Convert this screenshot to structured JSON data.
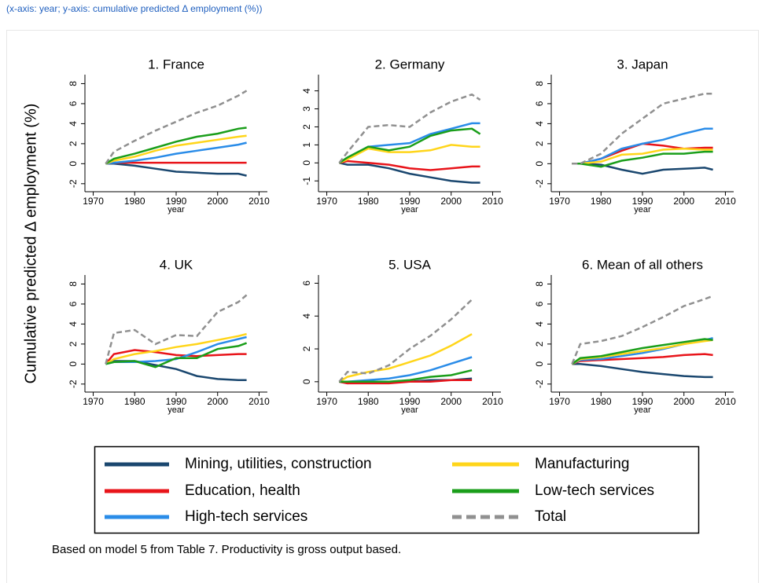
{
  "caption": "(x-axis: year; y-axis: cumulative predicted Δ employment (%))",
  "ylabel": "Cumulative predicted Δ employment (%)",
  "note": "Based on model 5 from Table 7. Productivity is gross output based.",
  "chart_data": [
    {
      "type": "line",
      "title": "1. France",
      "xlabel": "year",
      "x": [
        1973,
        1975,
        1980,
        1985,
        1990,
        1995,
        2000,
        2005,
        2007
      ],
      "xlim": [
        1968,
        2012
      ],
      "xticks": [
        1970,
        1980,
        1990,
        2000,
        2010
      ],
      "ylim": [
        -2.8,
        8.9
      ],
      "yticks": [
        -2,
        0,
        2,
        4,
        6,
        8
      ],
      "series": [
        {
          "name": "Mining, utilities, construction",
          "color": "#1a476f",
          "line_style": "solid",
          "values": [
            0,
            0,
            -0.2,
            -0.5,
            -0.8,
            -0.9,
            -1.0,
            -1.0,
            -1.2
          ]
        },
        {
          "name": "Education, health",
          "color": "#e8141a",
          "line_style": "solid",
          "values": [
            0,
            0.1,
            0.1,
            0.1,
            0.1,
            0.1,
            0.1,
            0.1,
            0.1
          ]
        },
        {
          "name": "High-tech services",
          "color": "#2a8ce8",
          "line_style": "solid",
          "values": [
            0,
            0.1,
            0.3,
            0.6,
            1.0,
            1.3,
            1.6,
            1.9,
            2.1
          ]
        },
        {
          "name": "Manufacturing",
          "color": "#ffd51a",
          "line_style": "solid",
          "values": [
            0,
            0.3,
            0.7,
            1.3,
            1.8,
            2.1,
            2.4,
            2.7,
            2.8
          ]
        },
        {
          "name": "Low-tech services",
          "color": "#1a9e1a",
          "line_style": "solid",
          "values": [
            0,
            0.5,
            1.0,
            1.6,
            2.2,
            2.7,
            3.0,
            3.5,
            3.6
          ]
        },
        {
          "name": "Total",
          "color": "#909090",
          "line_style": "dashed",
          "values": [
            0,
            1.2,
            2.3,
            3.3,
            4.2,
            5.1,
            5.8,
            6.8,
            7.3
          ]
        }
      ]
    },
    {
      "type": "line",
      "title": "2. Germany",
      "xlabel": "year",
      "x": [
        1973,
        1975,
        1980,
        1985,
        1990,
        1995,
        2000,
        2005,
        2007
      ],
      "xlim": [
        1968,
        2012
      ],
      "xticks": [
        1970,
        1980,
        1990,
        2000,
        2010
      ],
      "ylim": [
        -1.6,
        4.9
      ],
      "yticks": [
        -1,
        0,
        1,
        2,
        3,
        4
      ],
      "series": [
        {
          "name": "Mining, utilities, construction",
          "color": "#1a476f",
          "line_style": "solid",
          "values": [
            0,
            -0.1,
            -0.1,
            -0.3,
            -0.6,
            -0.8,
            -1.0,
            -1.1,
            -1.1
          ]
        },
        {
          "name": "Education, health",
          "color": "#e8141a",
          "line_style": "solid",
          "values": [
            0,
            0.1,
            0,
            -0.1,
            -0.3,
            -0.4,
            -0.3,
            -0.2,
            -0.2
          ]
        },
        {
          "name": "High-tech services",
          "color": "#2a8ce8",
          "line_style": "solid",
          "values": [
            0,
            0.3,
            0.9,
            1.0,
            1.1,
            1.6,
            1.9,
            2.2,
            2.2
          ]
        },
        {
          "name": "Manufacturing",
          "color": "#ffd51a",
          "line_style": "solid",
          "values": [
            0,
            0.2,
            0.8,
            0.6,
            0.6,
            0.7,
            1.0,
            0.9,
            0.9
          ]
        },
        {
          "name": "Low-tech services",
          "color": "#1a9e1a",
          "line_style": "solid",
          "values": [
            0,
            0.3,
            0.9,
            0.7,
            0.9,
            1.5,
            1.8,
            1.9,
            1.6
          ]
        },
        {
          "name": "Total",
          "color": "#909090",
          "line_style": "dashed",
          "values": [
            0,
            0.6,
            2.0,
            2.1,
            2.0,
            2.8,
            3.4,
            3.8,
            3.5
          ]
        }
      ]
    },
    {
      "type": "line",
      "title": "3. Japan",
      "xlabel": "year",
      "x": [
        1973,
        1975,
        1980,
        1985,
        1990,
        1995,
        2000,
        2005,
        2007
      ],
      "xlim": [
        1968,
        2012
      ],
      "xticks": [
        1970,
        1980,
        1990,
        2000,
        2010
      ],
      "ylim": [
        -2.8,
        8.9
      ],
      "yticks": [
        -2,
        0,
        2,
        4,
        6,
        8
      ],
      "series": [
        {
          "name": "Mining, utilities, construction",
          "color": "#1a476f",
          "line_style": "solid",
          "values": [
            0,
            0,
            -0.1,
            -0.6,
            -1.0,
            -0.6,
            -0.5,
            -0.4,
            -0.6
          ]
        },
        {
          "name": "Education, health",
          "color": "#e8141a",
          "line_style": "solid",
          "values": [
            0,
            0,
            0.5,
            1.3,
            2.0,
            1.8,
            1.5,
            1.6,
            1.6
          ]
        },
        {
          "name": "High-tech services",
          "color": "#2a8ce8",
          "line_style": "solid",
          "values": [
            0,
            0,
            0.5,
            1.5,
            2.0,
            2.4,
            3.0,
            3.5,
            3.5
          ]
        },
        {
          "name": "Manufacturing",
          "color": "#ffd51a",
          "line_style": "solid",
          "values": [
            0,
            0,
            0.2,
            0.9,
            1.0,
            1.4,
            1.5,
            1.4,
            1.4
          ]
        },
        {
          "name": "Low-tech services",
          "color": "#1a9e1a",
          "line_style": "solid",
          "values": [
            0,
            0,
            -0.3,
            0.3,
            0.6,
            1.0,
            1.0,
            1.2,
            1.2
          ]
        },
        {
          "name": "Total",
          "color": "#909090",
          "line_style": "dashed",
          "values": [
            0,
            0,
            1.0,
            3.0,
            4.5,
            6.0,
            6.5,
            7.0,
            7.0
          ]
        }
      ]
    },
    {
      "type": "line",
      "title": "4. UK",
      "xlabel": "year",
      "x": [
        1973,
        1975,
        1980,
        1985,
        1990,
        1995,
        2000,
        2005,
        2007
      ],
      "xlim": [
        1968,
        2012
      ],
      "xticks": [
        1970,
        1980,
        1990,
        2000,
        2010
      ],
      "ylim": [
        -2.8,
        8.9
      ],
      "yticks": [
        -2,
        0,
        2,
        4,
        6,
        8
      ],
      "series": [
        {
          "name": "Mining, utilities, construction",
          "color": "#1a476f",
          "line_style": "solid",
          "values": [
            0,
            0.3,
            0.3,
            -0.1,
            -0.5,
            -1.2,
            -1.5,
            -1.6,
            -1.6
          ]
        },
        {
          "name": "Education, health",
          "color": "#e8141a",
          "line_style": "solid",
          "values": [
            0,
            1.0,
            1.4,
            1.2,
            0.9,
            0.8,
            0.9,
            1.0,
            1.0
          ]
        },
        {
          "name": "High-tech services",
          "color": "#2a8ce8",
          "line_style": "solid",
          "values": [
            0,
            0.2,
            0.2,
            0.3,
            0.5,
            1.2,
            2.0,
            2.5,
            2.7
          ]
        },
        {
          "name": "Manufacturing",
          "color": "#ffd51a",
          "line_style": "solid",
          "values": [
            0,
            0.5,
            1.0,
            1.3,
            1.7,
            2.0,
            2.4,
            2.8,
            3.0
          ]
        },
        {
          "name": "Low-tech services",
          "color": "#1a9e1a",
          "line_style": "solid",
          "values": [
            0,
            0.2,
            0.3,
            -0.3,
            0.6,
            0.6,
            1.5,
            1.8,
            2.1
          ]
        },
        {
          "name": "Total",
          "color": "#909090",
          "line_style": "dashed",
          "values": [
            0,
            3.1,
            3.4,
            2.0,
            2.9,
            2.8,
            5.2,
            6.2,
            6.9
          ]
        }
      ]
    },
    {
      "type": "line",
      "title": "5. USA",
      "xlabel": "year",
      "x": [
        1973,
        1975,
        1980,
        1985,
        1990,
        1995,
        2000,
        2005
      ],
      "xlim": [
        1968,
        2012
      ],
      "xticks": [
        1970,
        1980,
        1990,
        2000,
        2010
      ],
      "ylim": [
        -0.63,
        6.5
      ],
      "yticks": [
        0,
        2,
        4,
        6
      ],
      "series": [
        {
          "name": "Mining, utilities, construction",
          "color": "#1a476f",
          "line_style": "solid",
          "values": [
            0,
            -0.1,
            0,
            0,
            0,
            0.1,
            0.1,
            0.2
          ]
        },
        {
          "name": "Education, health",
          "color": "#e8141a",
          "line_style": "solid",
          "values": [
            0,
            -0.1,
            -0.1,
            -0.1,
            0,
            0,
            0.1,
            0.1
          ]
        },
        {
          "name": "High-tech services",
          "color": "#2a8ce8",
          "line_style": "solid",
          "values": [
            0,
            0,
            0.1,
            0.2,
            0.4,
            0.7,
            1.1,
            1.5
          ]
        },
        {
          "name": "Manufacturing",
          "color": "#ffd51a",
          "line_style": "solid",
          "values": [
            0,
            0.3,
            0.6,
            0.8,
            1.2,
            1.6,
            2.2,
            2.9
          ]
        },
        {
          "name": "Low-tech services",
          "color": "#1a9e1a",
          "line_style": "solid",
          "values": [
            0,
            0,
            0,
            0,
            0.1,
            0.3,
            0.4,
            0.7
          ]
        },
        {
          "name": "Total",
          "color": "#909090",
          "line_style": "dashed",
          "values": [
            0,
            0.6,
            0.5,
            1.0,
            2.0,
            2.8,
            3.8,
            5.0
          ]
        }
      ]
    },
    {
      "type": "line",
      "title": "6. Mean of all others",
      "xlabel": "year",
      "x": [
        1973,
        1975,
        1980,
        1985,
        1990,
        1995,
        2000,
        2005,
        2007
      ],
      "xlim": [
        1968,
        2012
      ],
      "xticks": [
        1970,
        1980,
        1990,
        2000,
        2010
      ],
      "ylim": [
        -2.8,
        8.9
      ],
      "yticks": [
        -2,
        0,
        2,
        4,
        6,
        8
      ],
      "series": [
        {
          "name": "Mining, utilities, construction",
          "color": "#1a476f",
          "line_style": "solid",
          "values": [
            0,
            0,
            -0.2,
            -0.5,
            -0.8,
            -1.0,
            -1.2,
            -1.3,
            -1.3
          ]
        },
        {
          "name": "Education, health",
          "color": "#e8141a",
          "line_style": "solid",
          "values": [
            0,
            0.3,
            0.4,
            0.5,
            0.6,
            0.7,
            0.9,
            1.0,
            0.9
          ]
        },
        {
          "name": "High-tech services",
          "color": "#2a8ce8",
          "line_style": "solid",
          "values": [
            0,
            0.4,
            0.5,
            0.8,
            1.1,
            1.5,
            2.0,
            2.4,
            2.6
          ]
        },
        {
          "name": "Manufacturing",
          "color": "#ffd51a",
          "line_style": "solid",
          "values": [
            0,
            0.5,
            0.7,
            1.0,
            1.3,
            1.6,
            2.0,
            2.3,
            2.4
          ]
        },
        {
          "name": "Low-tech services",
          "color": "#1a9e1a",
          "line_style": "solid",
          "values": [
            0,
            0.6,
            0.8,
            1.2,
            1.6,
            1.9,
            2.2,
            2.5,
            2.4
          ]
        },
        {
          "name": "Total",
          "color": "#909090",
          "line_style": "dashed",
          "values": [
            0,
            2.0,
            2.3,
            2.8,
            3.7,
            4.7,
            5.8,
            6.5,
            6.8
          ]
        }
      ]
    }
  ]
}
